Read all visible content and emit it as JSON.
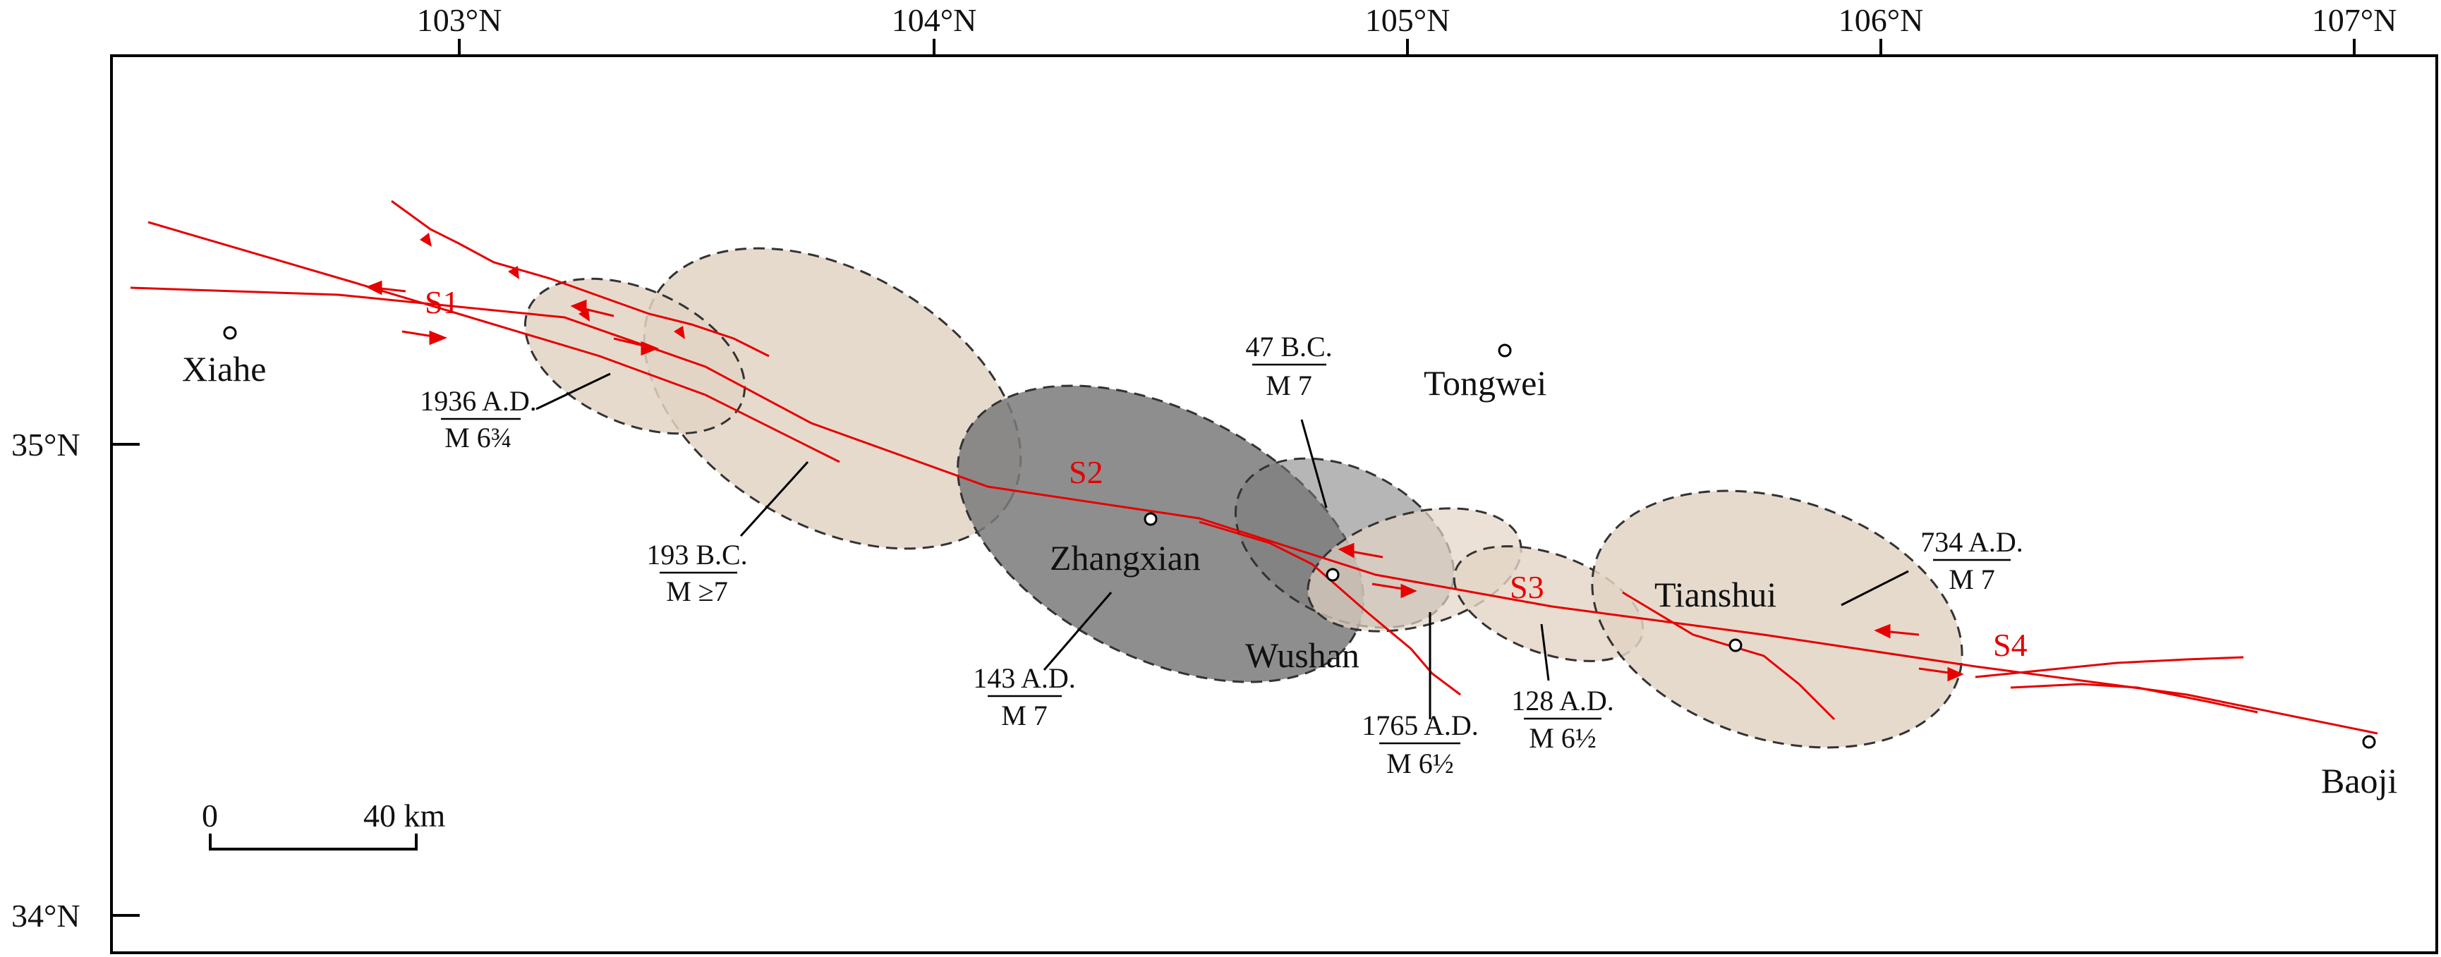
{
  "map": {
    "longitude_ticks": [
      "103°N",
      "104°N",
      "105°N",
      "106°N",
      "107°N"
    ],
    "latitude_ticks": [
      "35°N",
      "34°N"
    ],
    "towns": {
      "xiahe": "Xiahe",
      "tongwei": "Tongwei",
      "zhangxian": "Zhangxian",
      "wushan": "Wushan",
      "tianshui": "Tianshui",
      "baoji": "Baoji"
    },
    "segments": [
      "S1",
      "S2",
      "S3",
      "S4"
    ],
    "earthquakes": [
      {
        "id": "eq1936",
        "date": "1936 A.D.",
        "magnitude": "M 6¾"
      },
      {
        "id": "eq193bc",
        "date": "193 B.C.",
        "magnitude": "M ≥7"
      },
      {
        "id": "eq47bc",
        "date": "47 B.C.",
        "magnitude": "M 7"
      },
      {
        "id": "eq143",
        "date": "143 A.D.",
        "magnitude": "M 7"
      },
      {
        "id": "eq1765",
        "date": "1765 A.D.",
        "magnitude": "M 6½"
      },
      {
        "id": "eq128",
        "date": "128 A.D.",
        "magnitude": "M 6½"
      },
      {
        "id": "eq734",
        "date": "734 A.D.",
        "magnitude": "M 7"
      }
    ],
    "scale_bar": {
      "start": "0",
      "end": "40 km"
    },
    "colors": {
      "fault": "#e60000",
      "rupture_zone_light": "#e2d4c4",
      "rupture_zone_dark": "#7a7a7a",
      "frame": "#000000"
    }
  }
}
